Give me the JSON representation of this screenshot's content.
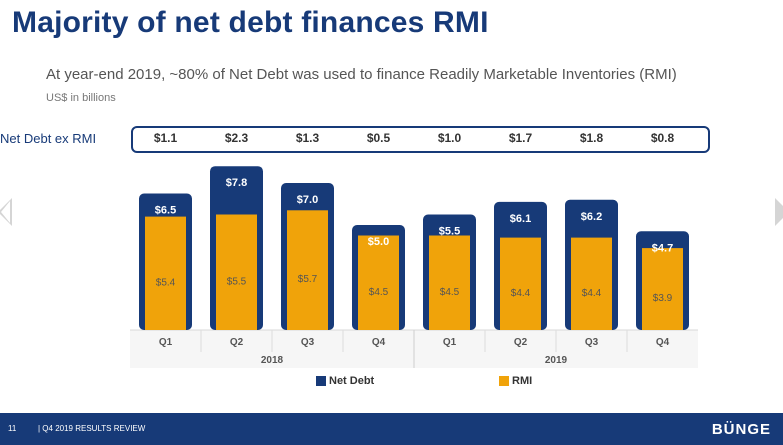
{
  "title": "Majority of net debt finances RMI",
  "subtitle": "At year-end 2019, ~80% of Net Debt was used to finance Readily Marketable Inventories (RMI)",
  "units": "US$ in billions",
  "net_debt_ex_rmi": {
    "label": "Net Debt ex RMI",
    "values": [
      "$1.1",
      "$2.3",
      "$1.3",
      "$0.5",
      "$1.0",
      "$1.7",
      "$1.8",
      "$0.8"
    ]
  },
  "footer": {
    "page_number": "11",
    "text": "| Q4 2019 RESULTS REVIEW",
    "logo": "BÜNGE"
  },
  "colors": {
    "net_debt": "#173a78",
    "rmi": "#f0a30a",
    "footer": "#173a78"
  },
  "chart_data": {
    "type": "bar",
    "categories": [
      "Q1",
      "Q2",
      "Q3",
      "Q4",
      "Q1",
      "Q2",
      "Q3",
      "Q4"
    ],
    "groups": [
      {
        "label": "2018",
        "start": 0,
        "end": 3
      },
      {
        "label": "2019",
        "start": 4,
        "end": 7
      }
    ],
    "series": [
      {
        "name": "Net Debt",
        "values": [
          6.5,
          7.8,
          7.0,
          5.0,
          5.5,
          6.1,
          6.2,
          4.7
        ],
        "labels": [
          "$6.5",
          "$7.8",
          "$7.0",
          "$5.0",
          "$5.5",
          "$6.1",
          "$6.2",
          "$4.7"
        ]
      },
      {
        "name": "RMI",
        "values": [
          5.4,
          5.5,
          5.7,
          4.5,
          4.5,
          4.4,
          4.4,
          3.9
        ],
        "labels": [
          "$5.4",
          "$5.5",
          "$5.7",
          "$4.5",
          "$4.5",
          "$4.4",
          "$4.4",
          "$3.9"
        ]
      }
    ],
    "legend_position": "bottom",
    "grid": false
  }
}
